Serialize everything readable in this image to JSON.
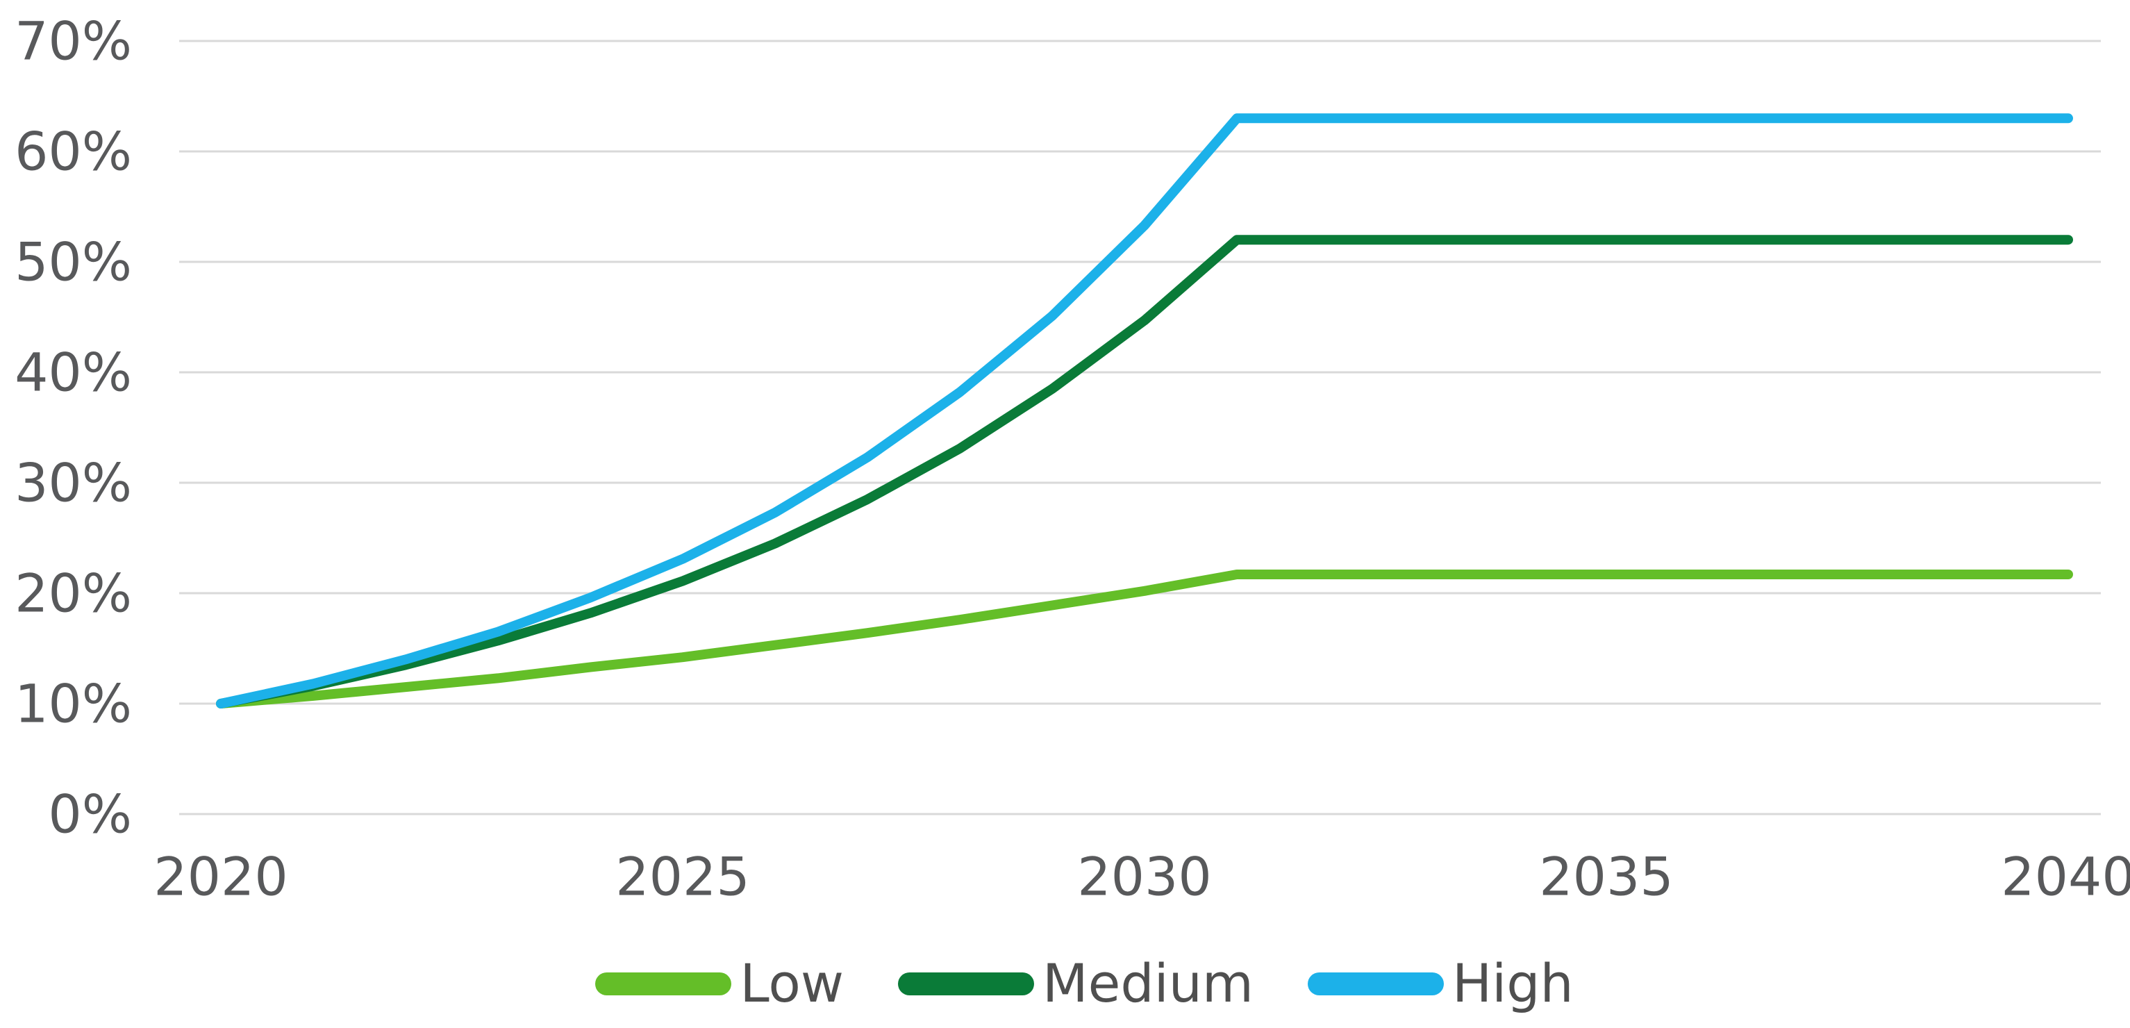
{
  "chart_data": {
    "type": "line",
    "title": "",
    "xlabel": "",
    "ylabel": "",
    "x": [
      2020,
      2021,
      2022,
      2023,
      2024,
      2025,
      2026,
      2027,
      2028,
      2029,
      2030,
      2031,
      2032,
      2033,
      2034,
      2035,
      2036,
      2037,
      2038,
      2039,
      2040
    ],
    "series": [
      {
        "name": "Low",
        "color": "#64BE28",
        "plateau_value": 21.7,
        "values": [
          10,
          10.7,
          11.5,
          12.3,
          13.3,
          14.2,
          15.3,
          16.4,
          17.6,
          18.9,
          20.2,
          21.7,
          21.7,
          21.7,
          21.7,
          21.7,
          21.7,
          21.7,
          21.7,
          21.7,
          21.7
        ]
      },
      {
        "name": "Medium",
        "color": "#0A7B38",
        "plateau_value": 52,
        "values": [
          10,
          11.6,
          13.5,
          15.7,
          18.2,
          21.1,
          24.5,
          28.5,
          33.1,
          38.5,
          44.7,
          52,
          52,
          52,
          52,
          52,
          52,
          52,
          52,
          52,
          52
        ]
      },
      {
        "name": "High",
        "color": "#1CB1E9",
        "plateau_value": 63,
        "values": [
          10,
          11.8,
          14,
          16.5,
          19.6,
          23.1,
          27.3,
          32.3,
          38.2,
          45.1,
          53.3,
          63,
          63,
          63,
          63,
          63,
          63,
          63,
          63,
          63,
          63
        ]
      }
    ],
    "xlim": [
      2020,
      2040
    ],
    "ylim": [
      0,
      70
    ],
    "x_ticks": [
      2020,
      2025,
      2030,
      2035,
      2040
    ],
    "x_tick_labels": [
      "2020",
      "2025",
      "2030",
      "2035",
      "2040"
    ],
    "y_ticks": [
      0,
      10,
      20,
      30,
      40,
      50,
      60,
      70
    ],
    "y_tick_labels": [
      "0%",
      "10%",
      "20%",
      "30%",
      "40%",
      "50%",
      "60%",
      "70%"
    ],
    "grid": "horizontal",
    "gridline_color": "#D9D9D9",
    "tick_label_color": "#58595B",
    "legend_position": "bottom",
    "line_width": 14
  }
}
